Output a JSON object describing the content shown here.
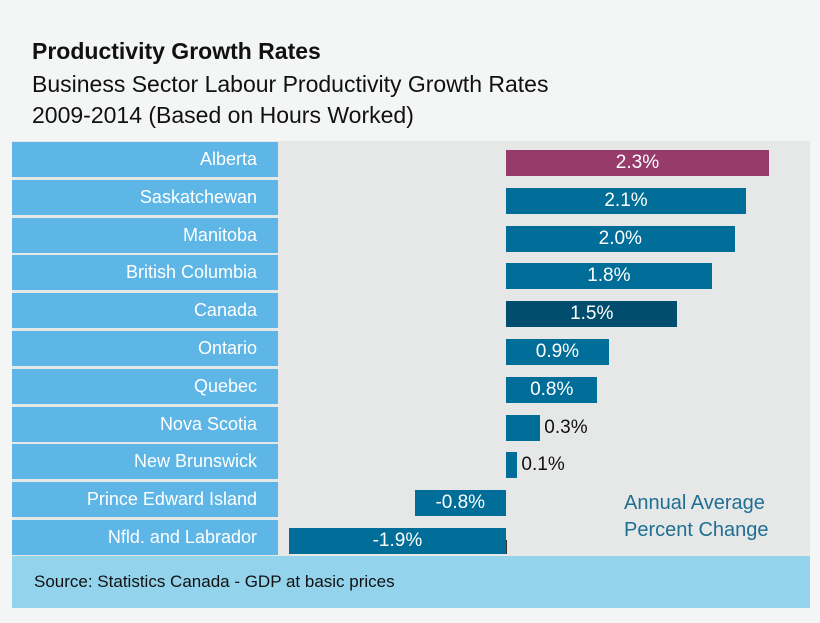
{
  "title": "Productivity Growth Rates",
  "subtitle_line1": "Business Sector Labour Productivity Growth Rates",
  "subtitle_line2": "2009-2014 (Based on Hours Worked)",
  "source": "Source: Statistics Canada - GDP at basic prices",
  "colors": {
    "default": "#006e98",
    "highlight": "#973b6b",
    "national": "#004d6e",
    "label_bg": "#5db6e6"
  },
  "chart_data": {
    "type": "bar",
    "orientation": "horizontal",
    "title": "Productivity Growth Rates",
    "categories": [
      "Alberta",
      "Saskatchewan",
      "Manitoba",
      "British Columbia",
      "Canada",
      "Ontario",
      "Quebec",
      "Nova Scotia",
      "New Brunswick",
      "Prince Edward Island",
      "Nfld. and Labrador"
    ],
    "values": [
      2.3,
      2.1,
      2.0,
      1.8,
      1.5,
      0.9,
      0.8,
      0.3,
      0.1,
      -0.8,
      -1.9
    ],
    "data_labels": [
      "2.3%",
      "2.1%",
      "2.0%",
      "1.8%",
      "1.5%",
      "0.9%",
      "0.8%",
      "0.3%",
      "0.1%",
      "-0.8%",
      "-1.9%"
    ],
    "annotation_line1": "Annual Average",
    "annotation_line2": "Percent Change",
    "xlim": [
      -1.9,
      2.3
    ],
    "grid": false
  }
}
